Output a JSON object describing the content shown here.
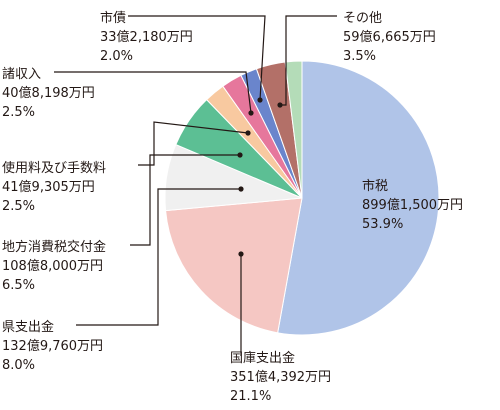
{
  "chart_data": {
    "type": "pie",
    "unit": "%",
    "slices": [
      {
        "name": "市税",
        "amount": "899億1,500万円",
        "value": 53.9,
        "color": "#b0c4e8"
      },
      {
        "name": "国庫支出金",
        "amount": "351億4,392万円",
        "value": 21.1,
        "color": "#f5c7c3"
      },
      {
        "name": "県支出金",
        "amount": "132億9,760万円",
        "value": 8.0,
        "color": "#f0f0f0"
      },
      {
        "name": "地方消費税交付金",
        "amount": "108億8,000万円",
        "value": 6.5,
        "color": "#5cbf94"
      },
      {
        "name": "使用料及び手数料",
        "amount": "41億9,305万円",
        "value": 2.5,
        "color": "#f8c9a0"
      },
      {
        "name": "諸収入",
        "amount": "40億8,198万円",
        "value": 2.5,
        "color": "#e6779c"
      },
      {
        "name": "市債",
        "amount": "33億2,180万円",
        "value": 2.0,
        "color": "#6a85cc"
      },
      {
        "name": "その他",
        "amount": "59億6,665万円",
        "value": 3.5,
        "color": "#b37068"
      }
    ],
    "extra_slice": {
      "value": 2.0,
      "color": "#b4dcb8"
    }
  }
}
